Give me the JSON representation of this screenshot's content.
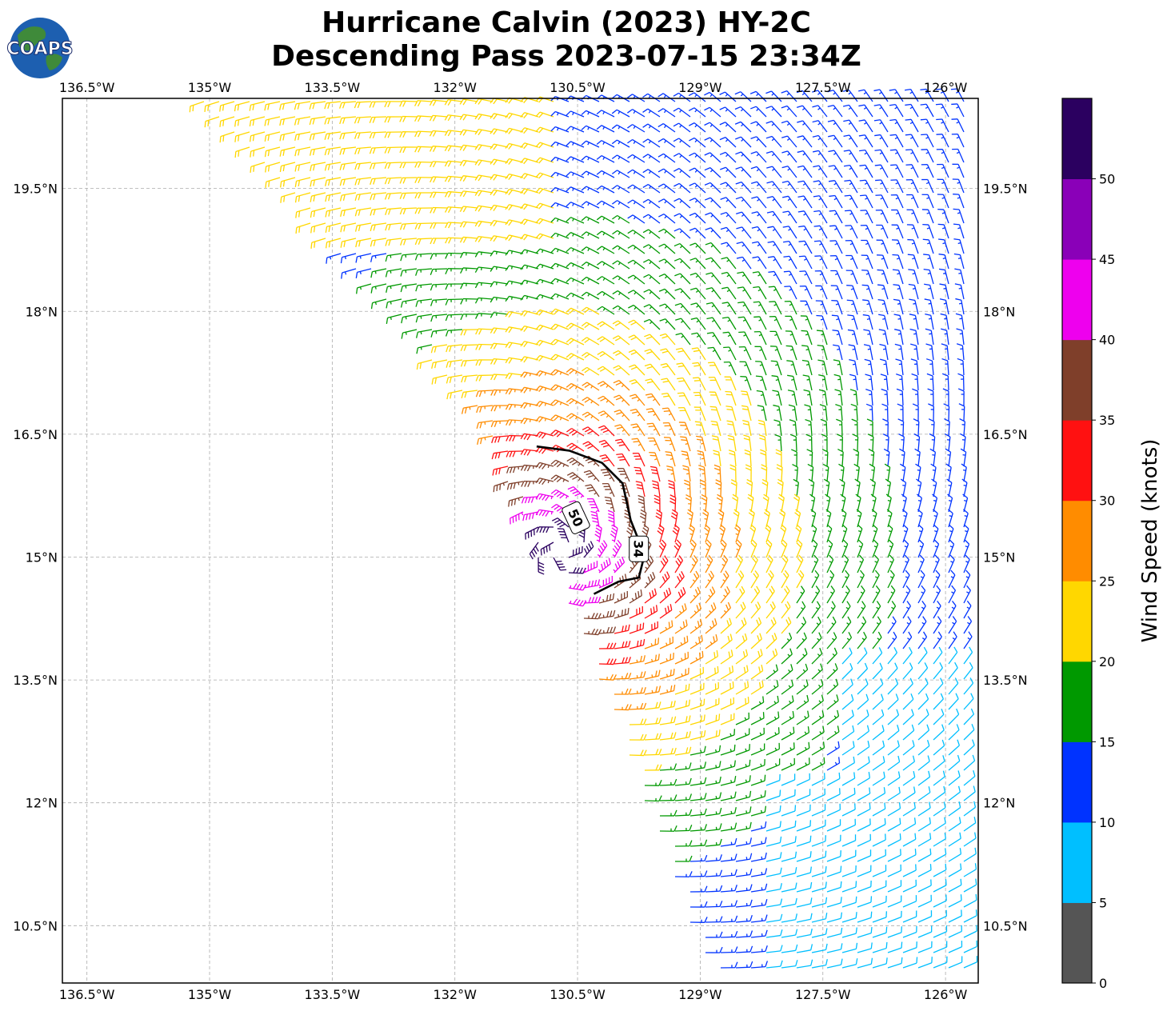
{
  "header": {
    "title_line1": "Hurricane Calvin (2023) HY-2C",
    "title_line2": "Descending Pass 2023-07-15 23:34Z",
    "logo_text": "COAPS"
  },
  "chart_data": {
    "type": "wind-barb-map",
    "lon_ticks": [
      "136.5°W",
      "135°W",
      "133.5°W",
      "132°W",
      "130.5°W",
      "129°W",
      "127.5°W",
      "126°W"
    ],
    "lon_values": [
      -136.5,
      -135,
      -133.5,
      -132,
      -130.5,
      -129,
      -127.5,
      -126
    ],
    "lat_ticks": [
      "19.5°N",
      "18°N",
      "16.5°N",
      "15°N",
      "13.5°N",
      "12°N",
      "10.5°N"
    ],
    "lat_values": [
      19.5,
      18,
      16.5,
      15,
      13.5,
      12,
      10.5
    ],
    "xlim": [
      -136.8,
      -125.6
    ],
    "ylim": [
      9.8,
      20.6
    ],
    "grid": true,
    "storm_center": {
      "lon": -130.7,
      "lat": 15.1
    },
    "contours": [
      {
        "label": "34",
        "label_lon": -129.75,
        "label_lat": 15.1,
        "points": [
          [
            -131.0,
            16.35
          ],
          [
            -130.6,
            16.3
          ],
          [
            -130.2,
            16.15
          ],
          [
            -129.95,
            15.9
          ],
          [
            -129.85,
            15.45
          ],
          [
            -129.75,
            15.2
          ],
          [
            -129.7,
            14.95
          ],
          [
            -129.75,
            14.75
          ],
          [
            -130.0,
            14.7
          ],
          [
            -130.3,
            14.55
          ]
        ]
      }
    ],
    "contour_labels": [
      {
        "label": "50",
        "lon": -130.52,
        "lat": 15.48
      }
    ],
    "colorbar": {
      "label": "Wind Speed (knots)",
      "bins": [
        0,
        5,
        10,
        15,
        20,
        25,
        30,
        35,
        40,
        45,
        50,
        55
      ],
      "tick_labels": [
        "0",
        "5",
        "10",
        "15",
        "20",
        "25",
        "30",
        "35",
        "40",
        "45",
        "50"
      ],
      "colors": [
        "#555555",
        "#00bfff",
        "#0033ff",
        "#009900",
        "#ffd700",
        "#ff8c00",
        "#ff1111",
        "#7f3f2a",
        "#ee00ee",
        "#8a00b8",
        "#2b0060"
      ]
    }
  }
}
